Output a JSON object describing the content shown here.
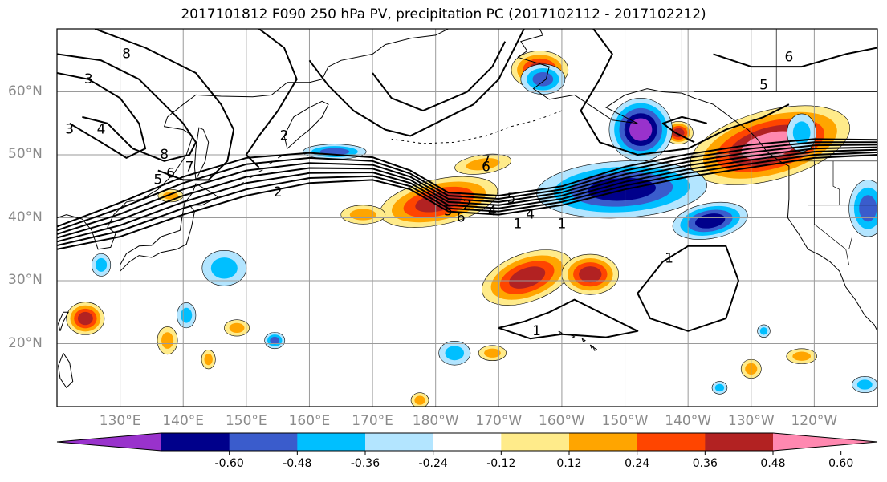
{
  "figure": {
    "title": "2017101812 F090 250 hPa PV, precipitation PC (2017102112 - 2017102212)"
  },
  "map": {
    "projection": "cylindrical",
    "lon_range_deg_east": [
      120,
      250
    ],
    "lat_range_deg": [
      10,
      70
    ],
    "lat_ticks": [
      "20°N",
      "30°N",
      "40°N",
      "50°N",
      "60°N"
    ],
    "lon_ticks": [
      "130°E",
      "140°E",
      "150°E",
      "160°E",
      "170°E",
      "180°W",
      "170°W",
      "160°W",
      "150°W",
      "140°W",
      "130°W",
      "120°W"
    ],
    "gridlines": true,
    "coastlines": true
  },
  "contours": {
    "field": "250 hPa PV",
    "line_color": "#000000",
    "labels": [
      "8",
      "3",
      "4",
      "3",
      "8",
      "5",
      "6",
      "7",
      "2",
      "2",
      "6",
      "5",
      "4",
      "2",
      "1",
      "7",
      "6",
      "5",
      "4",
      "1",
      "1",
      "1",
      "5",
      "6"
    ]
  },
  "colorbar": {
    "field": "precipitation PC",
    "colors": [
      "#9932cc",
      "#00008b",
      "#3a5ccc",
      "#00bfff",
      "#b3e5ff",
      "#ffffff",
      "#ffeb8a",
      "#ffa500",
      "#ff4500",
      "#b22222",
      "#ff88b0"
    ],
    "tick_labels": [
      "-0.60",
      "-0.48",
      "-0.36",
      "-0.24",
      "-0.12",
      "0.12",
      "0.24",
      "0.36",
      "0.48",
      "0.60"
    ],
    "extend": "both"
  }
}
